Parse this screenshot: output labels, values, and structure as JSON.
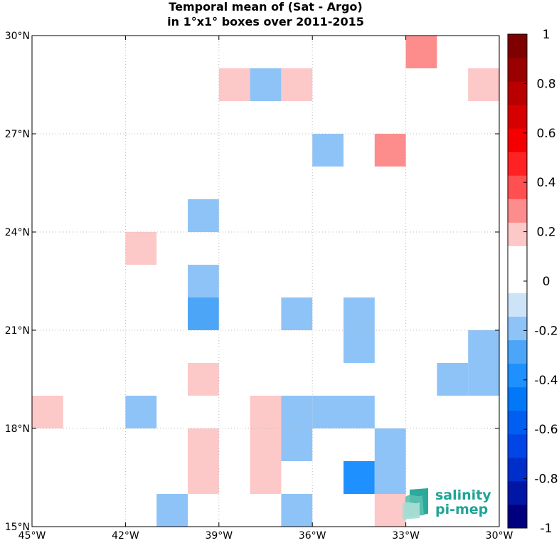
{
  "chart_data": {
    "type": "heatmap",
    "title_line1": "Temporal mean of (Sat - Argo)",
    "title_line2": "in 1°x1° boxes over 2011-2015",
    "xlim": [
      -45,
      -30
    ],
    "ylim": [
      15,
      30
    ],
    "xticks": [
      {
        "value": -45,
        "label": "45°W"
      },
      {
        "value": -42,
        "label": "42°W"
      },
      {
        "value": -39,
        "label": "39°W"
      },
      {
        "value": -36,
        "label": "36°W"
      },
      {
        "value": -33,
        "label": "33°W"
      },
      {
        "value": -30,
        "label": "30°W"
      }
    ],
    "yticks": [
      {
        "value": 30,
        "label": "30°N"
      },
      {
        "value": 27,
        "label": "27°N"
      },
      {
        "value": 24,
        "label": "24°N"
      },
      {
        "value": 21,
        "label": "21°N"
      },
      {
        "value": 18,
        "label": "18°N"
      },
      {
        "value": 15,
        "label": "15°N"
      }
    ],
    "grid": true,
    "cells": [
      {
        "lon": -33,
        "lat": 29,
        "value": 0.25
      },
      {
        "lon": -39,
        "lat": 28,
        "value": 0.15
      },
      {
        "lon": -38,
        "lat": 28,
        "value": -0.15
      },
      {
        "lon": -37,
        "lat": 28,
        "value": 0.15
      },
      {
        "lon": -31,
        "lat": 28,
        "value": 0.15
      },
      {
        "lon": -36,
        "lat": 26,
        "value": -0.15
      },
      {
        "lon": -34,
        "lat": 26,
        "value": 0.25
      },
      {
        "lon": -40,
        "lat": 24,
        "value": -0.15
      },
      {
        "lon": -42,
        "lat": 23,
        "value": 0.15
      },
      {
        "lon": -40,
        "lat": 22,
        "value": -0.15
      },
      {
        "lon": -40,
        "lat": 21,
        "value": -0.25
      },
      {
        "lon": -37,
        "lat": 21,
        "value": -0.15
      },
      {
        "lon": -35,
        "lat": 21,
        "value": -0.15
      },
      {
        "lon": -35,
        "lat": 20,
        "value": -0.15
      },
      {
        "lon": -31,
        "lat": 20,
        "value": -0.15
      },
      {
        "lon": -40,
        "lat": 19,
        "value": 0.15
      },
      {
        "lon": -32,
        "lat": 19,
        "value": -0.15
      },
      {
        "lon": -31,
        "lat": 19,
        "value": -0.15
      },
      {
        "lon": -45,
        "lat": 18,
        "value": 0.15
      },
      {
        "lon": -42,
        "lat": 18,
        "value": -0.15
      },
      {
        "lon": -38,
        "lat": 18,
        "value": 0.15
      },
      {
        "lon": -37,
        "lat": 18,
        "value": -0.15
      },
      {
        "lon": -36,
        "lat": 18,
        "value": -0.15
      },
      {
        "lon": -35,
        "lat": 18,
        "value": -0.15
      },
      {
        "lon": -40,
        "lat": 17,
        "value": 0.15
      },
      {
        "lon": -38,
        "lat": 17,
        "value": 0.15
      },
      {
        "lon": -37,
        "lat": 17,
        "value": -0.15
      },
      {
        "lon": -34,
        "lat": 17,
        "value": -0.15
      },
      {
        "lon": -40,
        "lat": 16,
        "value": 0.15
      },
      {
        "lon": -38,
        "lat": 16,
        "value": 0.15
      },
      {
        "lon": -35,
        "lat": 16,
        "value": -0.35
      },
      {
        "lon": -34,
        "lat": 16,
        "value": -0.15
      },
      {
        "lon": -41,
        "lat": 15,
        "value": -0.15
      },
      {
        "lon": -37,
        "lat": 15,
        "value": -0.15
      },
      {
        "lon": -34,
        "lat": 15,
        "value": 0.15
      }
    ],
    "colorbar": {
      "range": [
        -1,
        1
      ],
      "colors": [
        "#00007f",
        "#0017a5",
        "#002ecb",
        "#0045e6",
        "#005ef0",
        "#0078f7",
        "#1e90ff",
        "#4ca5f7",
        "#8ec3f7",
        "#cce3f8",
        "#ffffff",
        "#ffffff",
        "#fdc8c8",
        "#fd8c8c",
        "#fe5050",
        "#ff2222",
        "#f40000",
        "#d70000",
        "#b90000",
        "#9b0000",
        "#7f0000"
      ],
      "tick_values": [
        1,
        0.8,
        0.6,
        0.4,
        0.2,
        0,
        -0.2,
        -0.4,
        -0.6,
        -0.8,
        -1
      ],
      "tick_labels": [
        "1",
        "0.8",
        "0.6",
        "0.4",
        "0.2",
        "0",
        "-0.2",
        "-0.4",
        "-0.6",
        "-0.8",
        "-1"
      ]
    }
  },
  "logo": {
    "line1": "salinity",
    "line2": "pi-mep",
    "color": "#1fa595"
  }
}
